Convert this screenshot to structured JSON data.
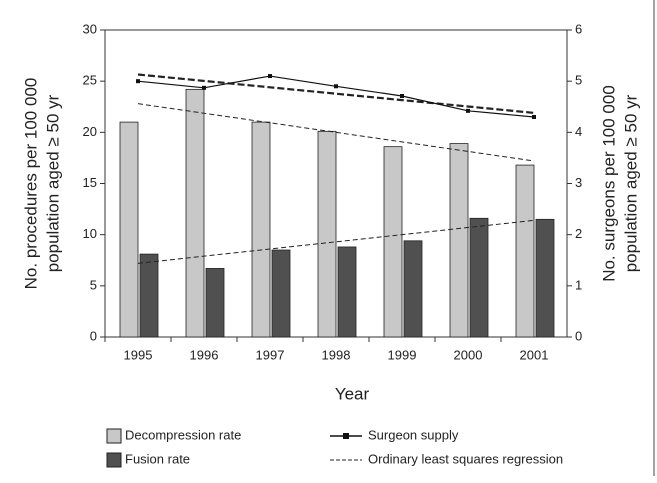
{
  "chart_data": {
    "type": "bar",
    "categories": [
      "1995",
      "1996",
      "1997",
      "1998",
      "1999",
      "2000",
      "2001"
    ],
    "series": [
      {
        "name": "Decompression rate",
        "color": "#c8c8c8",
        "values": [
          21,
          24.2,
          21,
          20.1,
          18.6,
          18.9,
          16.8
        ]
      },
      {
        "name": "Fusion rate",
        "color": "#505050",
        "values": [
          8.1,
          6.7,
          8.5,
          8.8,
          9.4,
          11.6,
          11.5
        ]
      },
      {
        "name": "Surgeon supply",
        "type": "line",
        "axis": "y2",
        "color": "#111111",
        "values": [
          5.0,
          4.87,
          5.1,
          4.9,
          4.71,
          4.42,
          4.3
        ]
      }
    ],
    "regression": {
      "name": "Ordinary least squares regression",
      "lines": [
        {
          "axis": "y2",
          "values": [
            5.13,
            4.38
          ]
        },
        {
          "axis": "y",
          "values": [
            22.8,
            17.2
          ]
        },
        {
          "axis": "y",
          "values": [
            7.2,
            11.4
          ]
        }
      ]
    },
    "xlabel": "Year",
    "ylabel": [
      "No. procedures per 100 000",
      "population aged ≥ 50 yr"
    ],
    "y2label": [
      "No. surgeons per 100 000",
      "population aged ≥ 50 yr"
    ],
    "ylim": [
      0,
      30
    ],
    "yticks": [
      0,
      5,
      10,
      15,
      20,
      25,
      30
    ],
    "y2lim": [
      0,
      6
    ],
    "y2ticks": [
      0,
      1,
      2,
      3,
      4,
      5,
      6
    ]
  }
}
